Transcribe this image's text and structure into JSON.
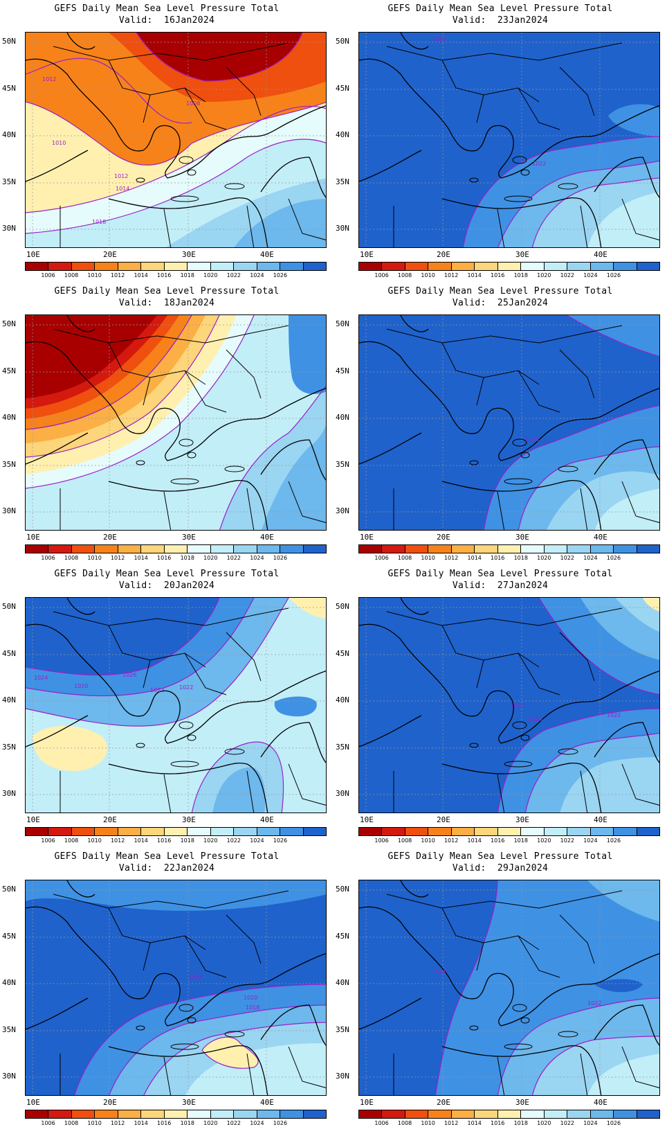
{
  "colors": {
    "levels": [
      "#a80000",
      "#d4190f",
      "#ef4f0f",
      "#f7821a",
      "#fbaf44",
      "#fdd57a",
      "#fff0b0",
      "#e6fbfb",
      "#c2eef8",
      "#9ad5f2",
      "#6db8ec",
      "#3f91e4",
      "#1f62cc"
    ],
    "contour": "#9b1fc7",
    "border": "#000000"
  },
  "colorbar_labels": [
    "1006",
    "1008",
    "1010",
    "1012",
    "1014",
    "1016",
    "1018",
    "1020",
    "1022",
    "1024",
    "1026"
  ],
  "lat_ticks": [
    "50N",
    "45N",
    "40N",
    "35N",
    "30N"
  ],
  "lon_ticks": [
    "10E",
    "20E",
    "30E",
    "40E"
  ],
  "panels": [
    {
      "title": "GEFS Daily Mean Sea Level Pressure Total",
      "valid": "Valid:  16Jan2024",
      "contour_labels": [
        "1012",
        "1008",
        "1010",
        "1012",
        "1014",
        "1018"
      ]
    },
    {
      "title": "GEFS Daily Mean Sea Level Pressure Total",
      "valid": "Valid:  23Jan2024",
      "contour_labels": [
        "1026",
        "1022"
      ]
    },
    {
      "title": "GEFS Daily Mean Sea Level Pressure Total",
      "valid": "Valid:  18Jan2024",
      "contour_labels": []
    },
    {
      "title": "GEFS Daily Mean Sea Level Pressure Total",
      "valid": "Valid:  25Jan2024",
      "contour_labels": [
        "1024"
      ]
    },
    {
      "title": "GEFS Daily Mean Sea Level Pressure Total",
      "valid": "Valid:  20Jan2024",
      "contour_labels": [
        "1024",
        "1020",
        "1026",
        "1022",
        "1022"
      ]
    },
    {
      "title": "GEFS Daily Mean Sea Level Pressure Total",
      "valid": "Valid:  27Jan2024",
      "contour_labels": [
        "1026",
        "1024",
        "1022"
      ]
    },
    {
      "title": "GEFS Daily Mean Sea Level Pressure Total",
      "valid": "Valid:  22Jan2024",
      "contour_labels": [
        "1026",
        "1020",
        "1018"
      ]
    },
    {
      "title": "GEFS Daily Mean Sea Level Pressure Total",
      "valid": "Valid:  29Jan2024",
      "contour_labels": [
        "1024",
        "1022"
      ]
    }
  ]
}
